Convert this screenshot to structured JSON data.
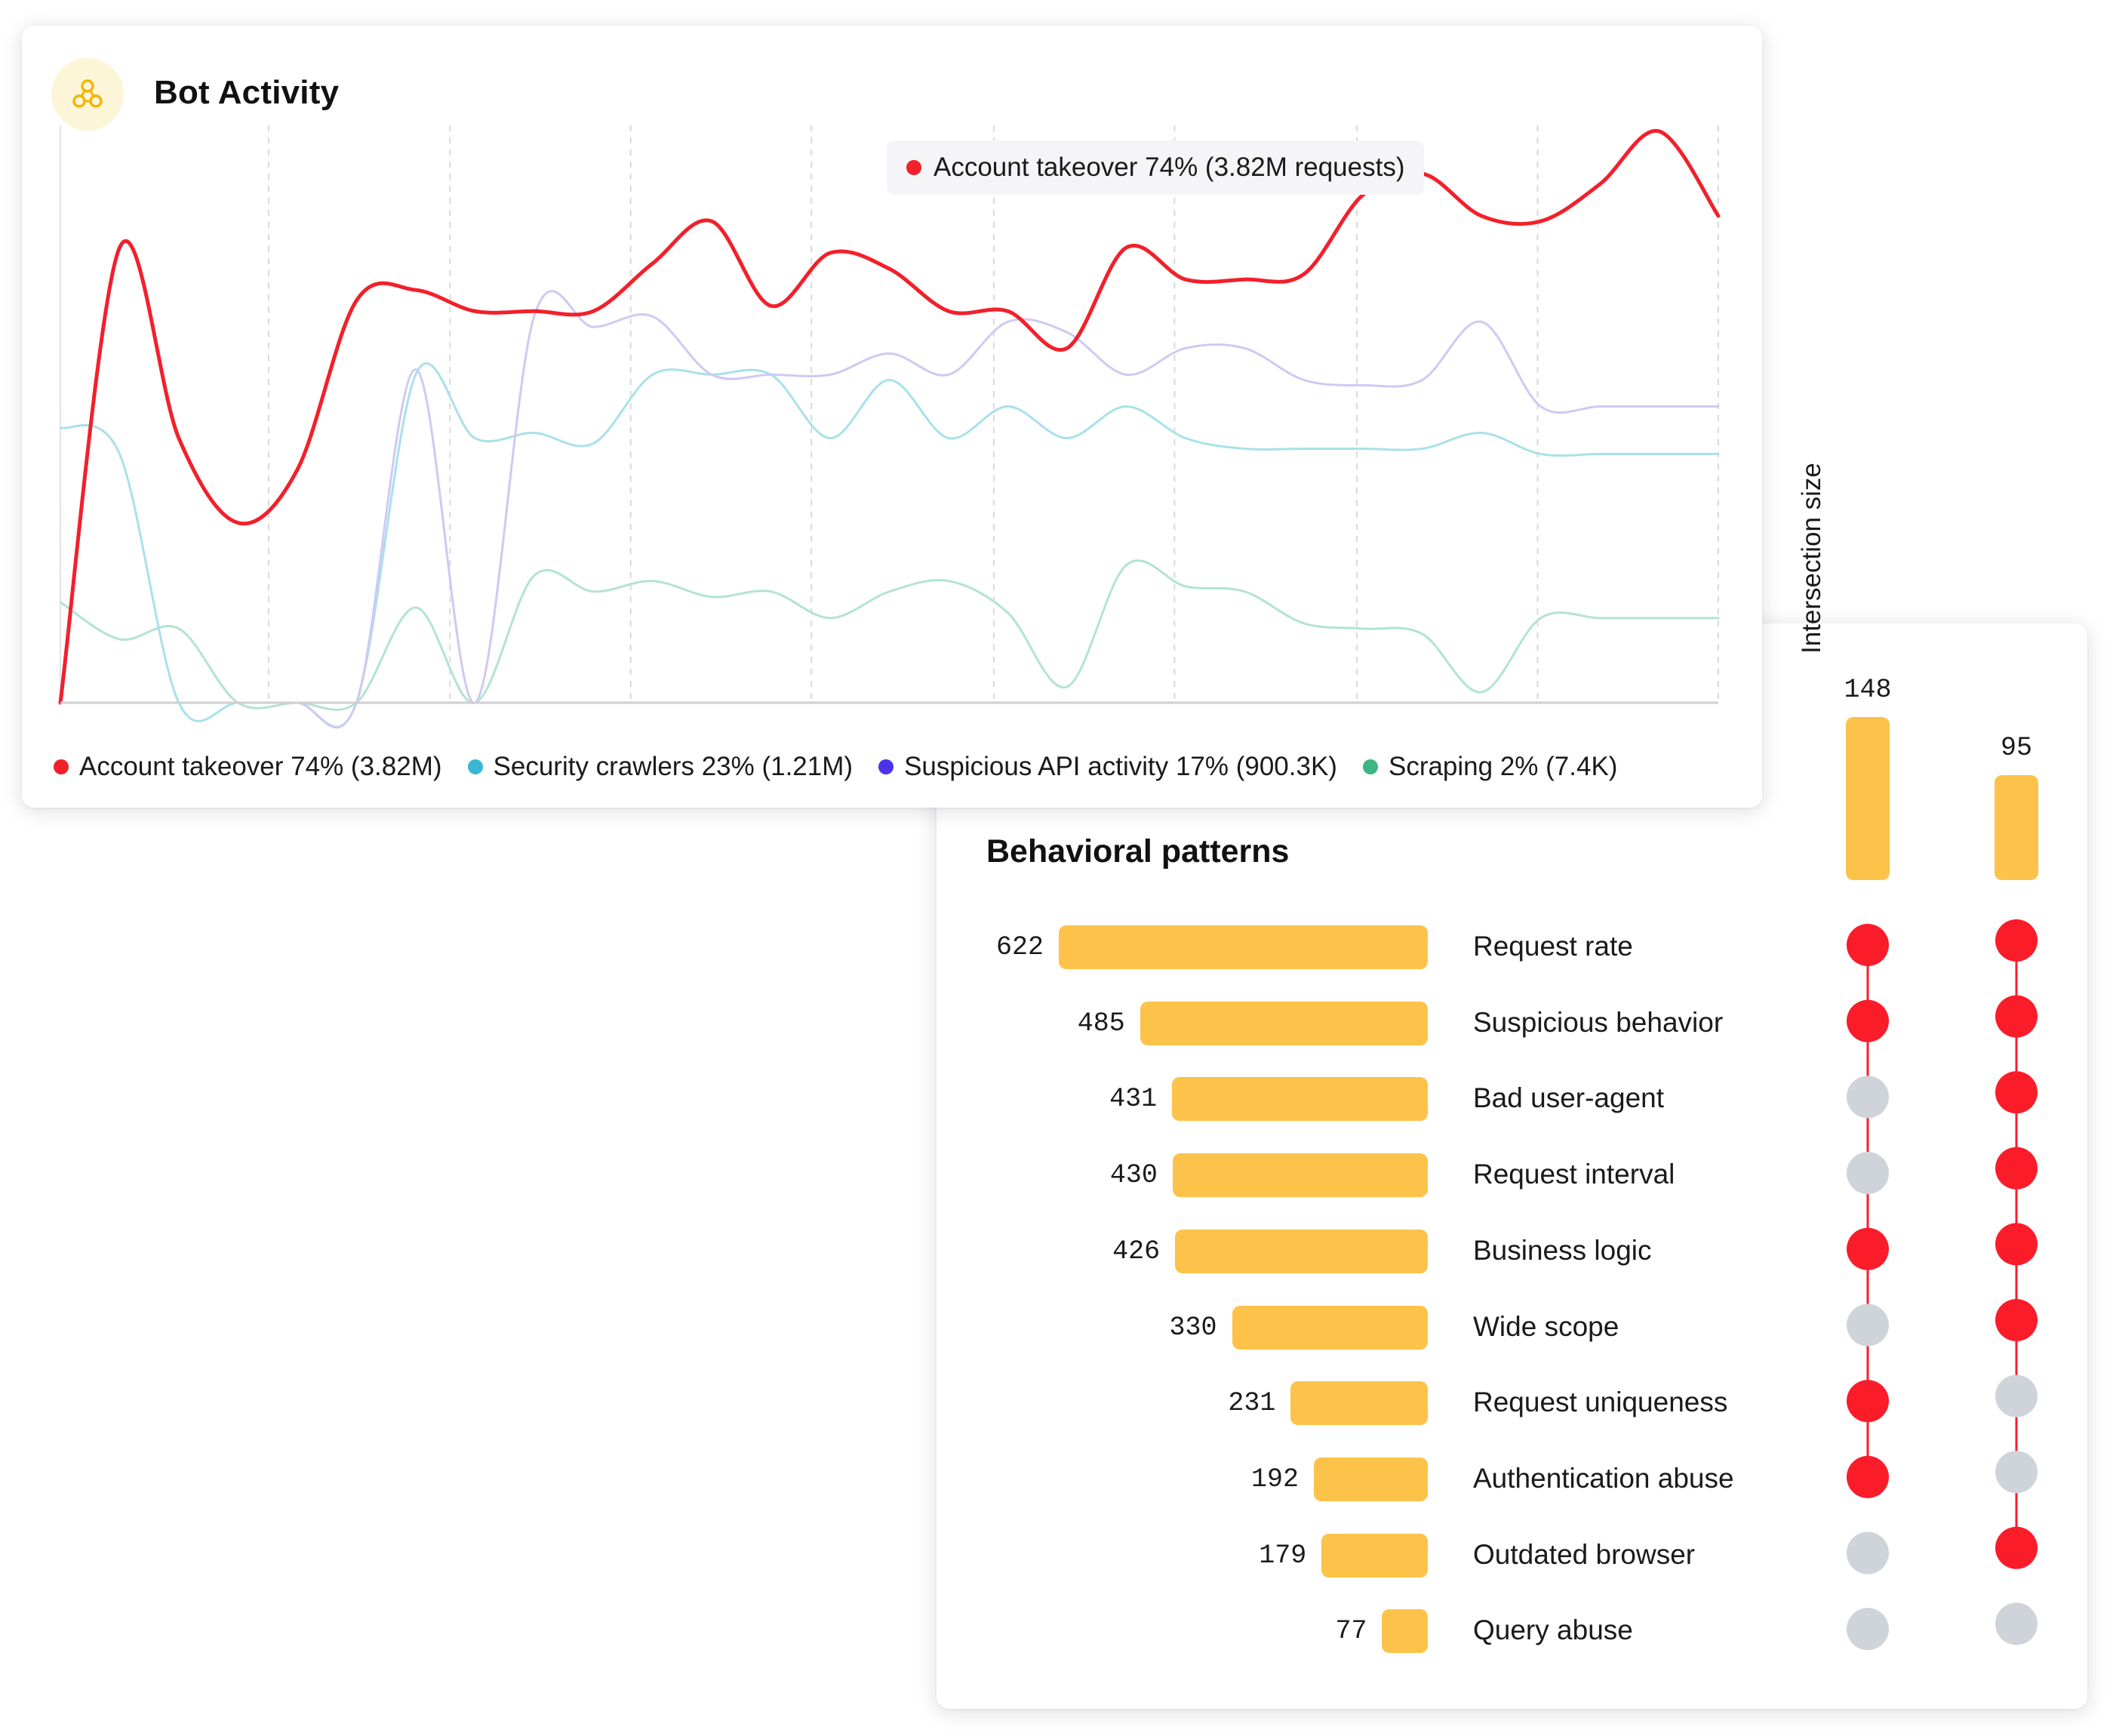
{
  "bot_activity": {
    "title": "Bot Activity",
    "icon": "bot-network-icon",
    "tooltip": {
      "text": "Account takeover 74% (3.82M requests)",
      "color": "#f2202b"
    },
    "legend": [
      {
        "label": "Account takeover 74% (3.82M)",
        "color": "#f2202b"
      },
      {
        "label": "Security crawlers 23% (1.21M)",
        "color": "#3ab7d4"
      },
      {
        "label": "Suspicious API activity 17% (900.3K)",
        "color": "#4a33e8"
      },
      {
        "label": "Scraping 2% (7.4K)",
        "color": "#3db584"
      }
    ]
  },
  "chart_data": [
    {
      "type": "line",
      "title": "Bot Activity",
      "ylim": [
        0,
        100
      ],
      "x": [
        0,
        1,
        2,
        3,
        4,
        5,
        6,
        7,
        8,
        9,
        10,
        11,
        12,
        13,
        14,
        15,
        16,
        17,
        18,
        19,
        20,
        21,
        22,
        23,
        24,
        25,
        26,
        27,
        28
      ],
      "grid": true,
      "series": [
        {
          "name": "Account takeover",
          "color": "#f2202b",
          "values": [
            0,
            86,
            50,
            34,
            44,
            76,
            78,
            74,
            74,
            74,
            83,
            91,
            75,
            85,
            82,
            74,
            74,
            67,
            86,
            80,
            80,
            81,
            96,
            100,
            92,
            91,
            98,
            108,
            92
          ]
        },
        {
          "name": "Security crawlers",
          "color": "#a8e1ea",
          "values": [
            52,
            47,
            0,
            0,
            0,
            0,
            62,
            50,
            51,
            49,
            62,
            62,
            62,
            50,
            61,
            50,
            56,
            50,
            56,
            50,
            48,
            48,
            48,
            48,
            51,
            47,
            47,
            47,
            47
          ]
        },
        {
          "name": "Suspicious API activity",
          "color": "#cfc9f4",
          "values": [
            0,
            0,
            0,
            0,
            0,
            0,
            63,
            0,
            73,
            71,
            73,
            62,
            62,
            62,
            66,
            62,
            72,
            70,
            62,
            67,
            67,
            61,
            60,
            61,
            72,
            56,
            56,
            56,
            56
          ]
        },
        {
          "name": "Scraping",
          "color": "#b3e3d2",
          "values": [
            19,
            12,
            14,
            0,
            0,
            0,
            18,
            0,
            24,
            21,
            23,
            20,
            21,
            16,
            21,
            23,
            17,
            3,
            26,
            22,
            21,
            15,
            14,
            13,
            2,
            16,
            16,
            16,
            16
          ]
        }
      ]
    },
    {
      "type": "bar",
      "title": "Behavioral patterns",
      "categories": [
        "Request rate",
        "Suspicious behavior",
        "Bad user-agent",
        "Request interval",
        "Business logic",
        "Wide scope",
        "Request uniqueness",
        "Authentication abuse",
        "Outdated browser",
        "Query abuse"
      ],
      "values": [
        622,
        485,
        431,
        430,
        426,
        330,
        231,
        192,
        179,
        77
      ],
      "intersections": {
        "ylabel": "Intersection size",
        "sizes": [
          148,
          95
        ],
        "membership": [
          [
            true,
            true,
            false,
            false,
            true,
            false,
            true,
            true,
            false,
            false
          ],
          [
            true,
            true,
            true,
            true,
            true,
            true,
            false,
            false,
            true,
            false
          ]
        ]
      }
    }
  ],
  "behavioral": {
    "title": "Behavioral patterns",
    "intersection_label": "Intersection size",
    "colors": {
      "bar": "#fcc24a",
      "active_dot": "#fb1c2a",
      "inactive_dot": "#cfd3da",
      "link": "#fb1c2a"
    }
  }
}
